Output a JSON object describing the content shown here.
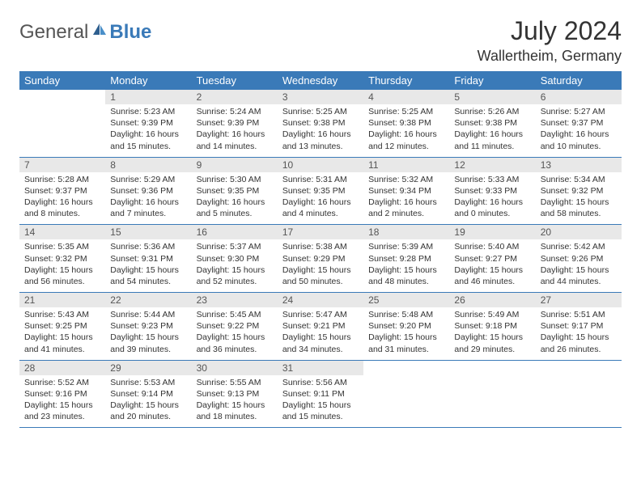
{
  "logo": {
    "general": "General",
    "blue": "Blue"
  },
  "title": "July 2024",
  "location": "Wallertheim, Germany",
  "colors": {
    "header_bg": "#3a7ab8",
    "header_text": "#ffffff",
    "daynum_bg": "#e8e8e8",
    "daynum_text": "#555555",
    "border": "#3a7ab8",
    "body_text": "#333333",
    "page_bg": "#ffffff"
  },
  "weekdays": [
    "Sunday",
    "Monday",
    "Tuesday",
    "Wednesday",
    "Thursday",
    "Friday",
    "Saturday"
  ],
  "weeks": [
    [
      null,
      {
        "d": "1",
        "sr": "5:23 AM",
        "ss": "9:39 PM",
        "dl": "16 hours and 15 minutes."
      },
      {
        "d": "2",
        "sr": "5:24 AM",
        "ss": "9:39 PM",
        "dl": "16 hours and 14 minutes."
      },
      {
        "d": "3",
        "sr": "5:25 AM",
        "ss": "9:38 PM",
        "dl": "16 hours and 13 minutes."
      },
      {
        "d": "4",
        "sr": "5:25 AM",
        "ss": "9:38 PM",
        "dl": "16 hours and 12 minutes."
      },
      {
        "d": "5",
        "sr": "5:26 AM",
        "ss": "9:38 PM",
        "dl": "16 hours and 11 minutes."
      },
      {
        "d": "6",
        "sr": "5:27 AM",
        "ss": "9:37 PM",
        "dl": "16 hours and 10 minutes."
      }
    ],
    [
      {
        "d": "7",
        "sr": "5:28 AM",
        "ss": "9:37 PM",
        "dl": "16 hours and 8 minutes."
      },
      {
        "d": "8",
        "sr": "5:29 AM",
        "ss": "9:36 PM",
        "dl": "16 hours and 7 minutes."
      },
      {
        "d": "9",
        "sr": "5:30 AM",
        "ss": "9:35 PM",
        "dl": "16 hours and 5 minutes."
      },
      {
        "d": "10",
        "sr": "5:31 AM",
        "ss": "9:35 PM",
        "dl": "16 hours and 4 minutes."
      },
      {
        "d": "11",
        "sr": "5:32 AM",
        "ss": "9:34 PM",
        "dl": "16 hours and 2 minutes."
      },
      {
        "d": "12",
        "sr": "5:33 AM",
        "ss": "9:33 PM",
        "dl": "16 hours and 0 minutes."
      },
      {
        "d": "13",
        "sr": "5:34 AM",
        "ss": "9:32 PM",
        "dl": "15 hours and 58 minutes."
      }
    ],
    [
      {
        "d": "14",
        "sr": "5:35 AM",
        "ss": "9:32 PM",
        "dl": "15 hours and 56 minutes."
      },
      {
        "d": "15",
        "sr": "5:36 AM",
        "ss": "9:31 PM",
        "dl": "15 hours and 54 minutes."
      },
      {
        "d": "16",
        "sr": "5:37 AM",
        "ss": "9:30 PM",
        "dl": "15 hours and 52 minutes."
      },
      {
        "d": "17",
        "sr": "5:38 AM",
        "ss": "9:29 PM",
        "dl": "15 hours and 50 minutes."
      },
      {
        "d": "18",
        "sr": "5:39 AM",
        "ss": "9:28 PM",
        "dl": "15 hours and 48 minutes."
      },
      {
        "d": "19",
        "sr": "5:40 AM",
        "ss": "9:27 PM",
        "dl": "15 hours and 46 minutes."
      },
      {
        "d": "20",
        "sr": "5:42 AM",
        "ss": "9:26 PM",
        "dl": "15 hours and 44 minutes."
      }
    ],
    [
      {
        "d": "21",
        "sr": "5:43 AM",
        "ss": "9:25 PM",
        "dl": "15 hours and 41 minutes."
      },
      {
        "d": "22",
        "sr": "5:44 AM",
        "ss": "9:23 PM",
        "dl": "15 hours and 39 minutes."
      },
      {
        "d": "23",
        "sr": "5:45 AM",
        "ss": "9:22 PM",
        "dl": "15 hours and 36 minutes."
      },
      {
        "d": "24",
        "sr": "5:47 AM",
        "ss": "9:21 PM",
        "dl": "15 hours and 34 minutes."
      },
      {
        "d": "25",
        "sr": "5:48 AM",
        "ss": "9:20 PM",
        "dl": "15 hours and 31 minutes."
      },
      {
        "d": "26",
        "sr": "5:49 AM",
        "ss": "9:18 PM",
        "dl": "15 hours and 29 minutes."
      },
      {
        "d": "27",
        "sr": "5:51 AM",
        "ss": "9:17 PM",
        "dl": "15 hours and 26 minutes."
      }
    ],
    [
      {
        "d": "28",
        "sr": "5:52 AM",
        "ss": "9:16 PM",
        "dl": "15 hours and 23 minutes."
      },
      {
        "d": "29",
        "sr": "5:53 AM",
        "ss": "9:14 PM",
        "dl": "15 hours and 20 minutes."
      },
      {
        "d": "30",
        "sr": "5:55 AM",
        "ss": "9:13 PM",
        "dl": "15 hours and 18 minutes."
      },
      {
        "d": "31",
        "sr": "5:56 AM",
        "ss": "9:11 PM",
        "dl": "15 hours and 15 minutes."
      },
      null,
      null,
      null
    ]
  ],
  "labels": {
    "sunrise": "Sunrise:",
    "sunset": "Sunset:",
    "daylight": "Daylight:"
  }
}
